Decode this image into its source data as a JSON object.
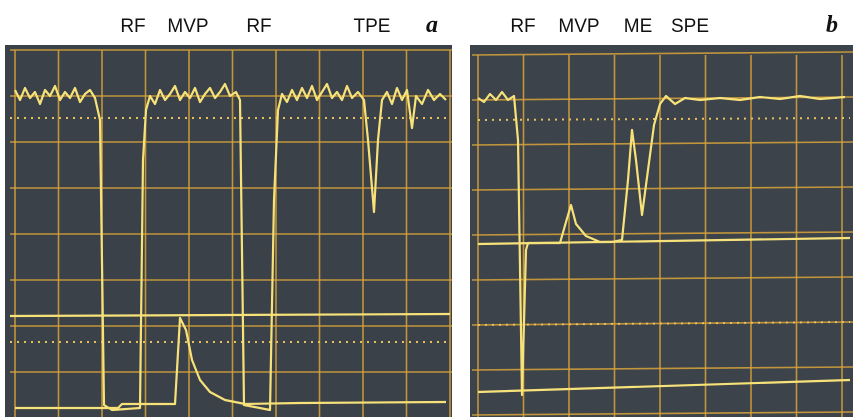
{
  "panels": [
    {
      "letter": "a",
      "labels": [
        "RF",
        "MVP",
        "RF",
        "TPE"
      ]
    },
    {
      "letter": "b",
      "labels": [
        "RF",
        "MVP",
        "ME",
        "SPE"
      ]
    }
  ]
}
